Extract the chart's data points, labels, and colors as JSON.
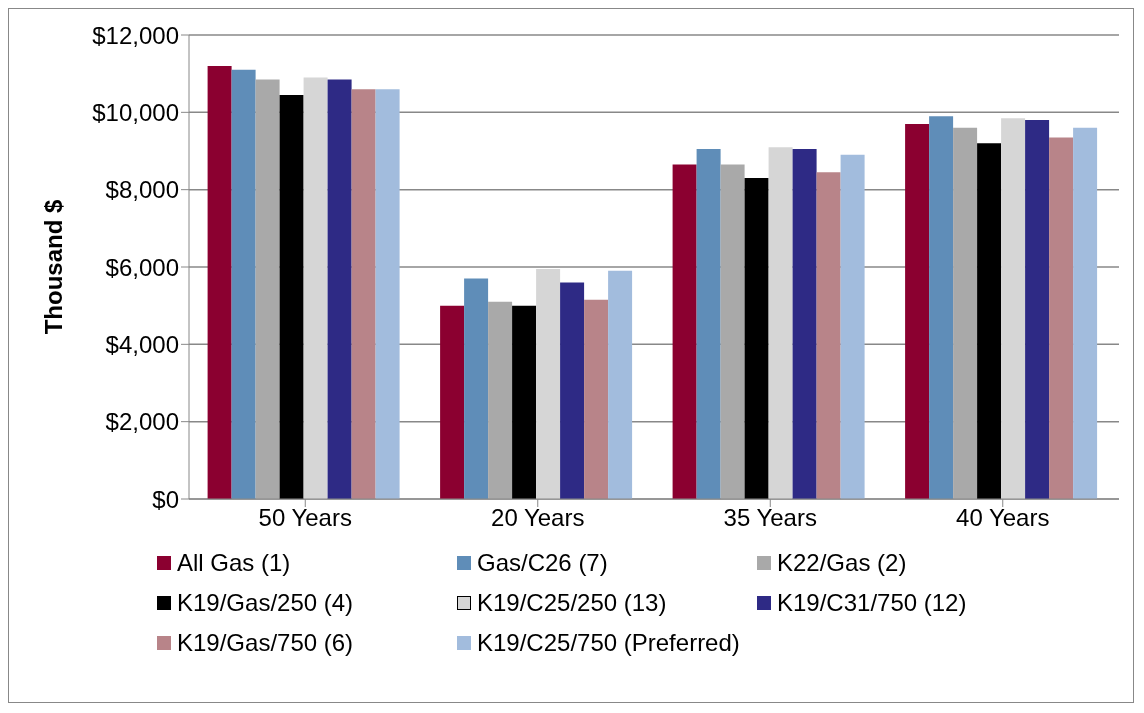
{
  "chart_data": {
    "type": "bar",
    "ylabel": "Thousand $",
    "categories": [
      "50 Years",
      "20 Years",
      "35 Years",
      "40 Years"
    ],
    "series": [
      {
        "name": "All Gas (1)",
        "color": "#8b0030",
        "values": [
          11200,
          5000,
          8650,
          9700
        ]
      },
      {
        "name": "Gas/C26 (7)",
        "color": "#5f8db8",
        "values": [
          11100,
          5700,
          9050,
          9900
        ]
      },
      {
        "name": "K22/Gas (2)",
        "color": "#a9a9a9",
        "values": [
          10850,
          5100,
          8650,
          9600
        ]
      },
      {
        "name": "K19/Gas/250 (4)",
        "color": "#000000",
        "values": [
          10450,
          5000,
          8300,
          9200
        ]
      },
      {
        "name": "K19/C25/250 (13)",
        "color": "#d6d6d6",
        "values": [
          10900,
          5950,
          9100,
          9850
        ]
      },
      {
        "name": "K19/C31/750 (12)",
        "color": "#2e2a85",
        "values": [
          10850,
          5600,
          9050,
          9800
        ]
      },
      {
        "name": "K19/Gas/750 (6)",
        "color": "#b88489",
        "values": [
          10600,
          5150,
          8450,
          9350
        ]
      },
      {
        "name": "K19/C25/750 (Preferred)",
        "color": "#a2bcdd",
        "values": [
          10600,
          5900,
          8900,
          9600
        ]
      }
    ],
    "ylim": [
      0,
      12000
    ],
    "yticks": [
      {
        "value": 0,
        "label": "$0"
      },
      {
        "value": 2000,
        "label": "$2,000"
      },
      {
        "value": 4000,
        "label": "$4,000"
      },
      {
        "value": 6000,
        "label": "$6,000"
      },
      {
        "value": 8000,
        "label": "$8,000"
      },
      {
        "value": 10000,
        "label": "$10,000"
      },
      {
        "value": 12000,
        "label": "$12,000"
      }
    ],
    "grid": "y",
    "legend": "bottom"
  }
}
